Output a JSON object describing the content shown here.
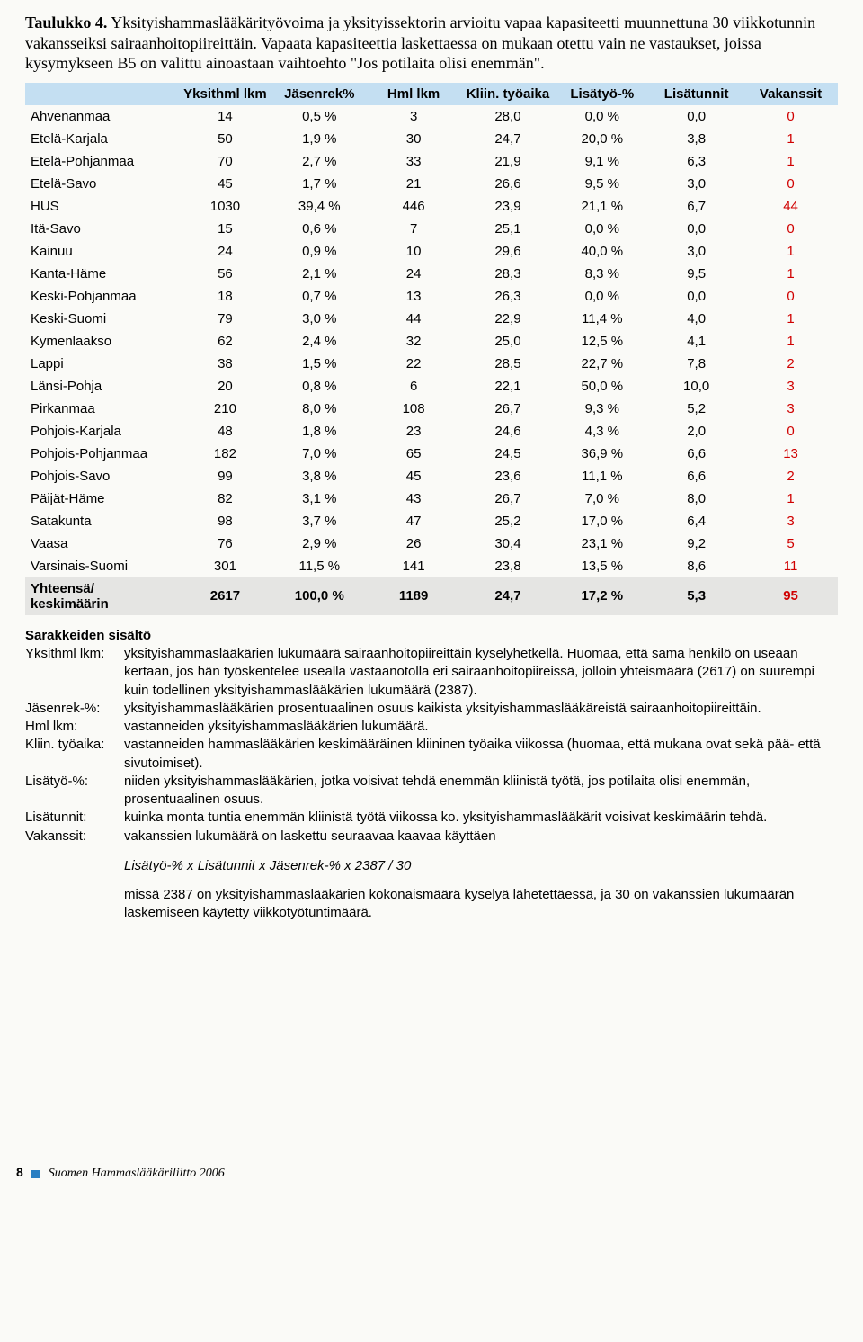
{
  "title_bold": "Taulukko 4.",
  "title_rest": " Yksityishammaslääkärityövoima ja yksityissektorin arvioitu vapaa kapasiteetti muunnettuna 30 viikkotunnin vakansseiksi sairaanhoitopiireittäin. Vapaata kapasiteettia laskettaessa on mukaan otettu vain ne vastaukset, joissa kysymykseen B5 on valittu ainoastaan vaihtoehto \"Jos potilaita olisi enemmän\".",
  "headers": [
    "",
    "Yksithml lkm",
    "Jäsenrek%",
    "Hml lkm",
    "Kliin. työaika",
    "Lisätyö-%",
    "Lisätunnit",
    "Vakanssit"
  ],
  "rows": [
    {
      "r": "Ahvenanmaa",
      "c": [
        "14",
        "0,5 %",
        "3",
        "28,0",
        "0,0 %",
        "0,0",
        "0"
      ]
    },
    {
      "r": "Etelä-Karjala",
      "c": [
        "50",
        "1,9 %",
        "30",
        "24,7",
        "20,0 %",
        "3,8",
        "1"
      ]
    },
    {
      "r": "Etelä-Pohjanmaa",
      "c": [
        "70",
        "2,7 %",
        "33",
        "21,9",
        "9,1 %",
        "6,3",
        "1"
      ]
    },
    {
      "r": "Etelä-Savo",
      "c": [
        "45",
        "1,7 %",
        "21",
        "26,6",
        "9,5 %",
        "3,0",
        "0"
      ]
    },
    {
      "r": "HUS",
      "c": [
        "1030",
        "39,4 %",
        "446",
        "23,9",
        "21,1 %",
        "6,7",
        "44"
      ]
    },
    {
      "r": "Itä-Savo",
      "c": [
        "15",
        "0,6 %",
        "7",
        "25,1",
        "0,0 %",
        "0,0",
        "0"
      ]
    },
    {
      "r": "Kainuu",
      "c": [
        "24",
        "0,9 %",
        "10",
        "29,6",
        "40,0 %",
        "3,0",
        "1"
      ]
    },
    {
      "r": "Kanta-Häme",
      "c": [
        "56",
        "2,1 %",
        "24",
        "28,3",
        "8,3 %",
        "9,5",
        "1"
      ]
    },
    {
      "r": "Keski-Pohjanmaa",
      "c": [
        "18",
        "0,7 %",
        "13",
        "26,3",
        "0,0 %",
        "0,0",
        "0"
      ]
    },
    {
      "r": "Keski-Suomi",
      "c": [
        "79",
        "3,0 %",
        "44",
        "22,9",
        "11,4 %",
        "4,0",
        "1"
      ]
    },
    {
      "r": "Kymenlaakso",
      "c": [
        "62",
        "2,4 %",
        "32",
        "25,0",
        "12,5 %",
        "4,1",
        "1"
      ]
    },
    {
      "r": "Lappi",
      "c": [
        "38",
        "1,5 %",
        "22",
        "28,5",
        "22,7 %",
        "7,8",
        "2"
      ]
    },
    {
      "r": "Länsi-Pohja",
      "c": [
        "20",
        "0,8 %",
        "6",
        "22,1",
        "50,0 %",
        "10,0",
        "3"
      ]
    },
    {
      "r": "Pirkanmaa",
      "c": [
        "210",
        "8,0 %",
        "108",
        "26,7",
        "9,3 %",
        "5,2",
        "3"
      ]
    },
    {
      "r": "Pohjois-Karjala",
      "c": [
        "48",
        "1,8 %",
        "23",
        "24,6",
        "4,3 %",
        "2,0",
        "0"
      ]
    },
    {
      "r": "Pohjois-Pohjanmaa",
      "c": [
        "182",
        "7,0 %",
        "65",
        "24,5",
        "36,9 %",
        "6,6",
        "13"
      ]
    },
    {
      "r": "Pohjois-Savo",
      "c": [
        "99",
        "3,8 %",
        "45",
        "23,6",
        "11,1 %",
        "6,6",
        "2"
      ]
    },
    {
      "r": "Päijät-Häme",
      "c": [
        "82",
        "3,1 %",
        "43",
        "26,7",
        "7,0 %",
        "8,0",
        "1"
      ]
    },
    {
      "r": "Satakunta",
      "c": [
        "98",
        "3,7 %",
        "47",
        "25,2",
        "17,0 %",
        "6,4",
        "3"
      ]
    },
    {
      "r": "Vaasa",
      "c": [
        "76",
        "2,9 %",
        "26",
        "30,4",
        "23,1 %",
        "9,2",
        "5"
      ]
    },
    {
      "r": "Varsinais-Suomi",
      "c": [
        "301",
        "11,5 %",
        "141",
        "23,8",
        "13,5 %",
        "8,6",
        "11"
      ]
    }
  ],
  "total_label1": "Yhteensä/",
  "total_label2": "keskimäärin",
  "total_cells": [
    "2617",
    "100,0 %",
    "1189",
    "24,7",
    "17,2 %",
    "5,3",
    "95"
  ],
  "defs_title": "Sarakkeiden sisältö",
  "defs": [
    {
      "t": "Yksithml lkm:",
      "d": "yksityishammaslääkärien lukumäärä sairaanhoitopiireittäin kyselyhetkellä. Huomaa, että sama henkilö on useaan kertaan, jos hän työskentelee usealla vastaanotolla eri sairaanhoitopiireissä, jolloin yhteismäärä (2617) on suurempi kuin todellinen yksityishammaslääkärien lukumäärä (2387)."
    },
    {
      "t": "Jäsenrek-%:",
      "d": "yksityishammaslääkärien prosentuaalinen osuus kaikista yksityishammaslääkäreistä sairaanhoitopiireittäin."
    },
    {
      "t": "Hml lkm:",
      "d": "vastanneiden yksityishammaslääkärien lukumäärä."
    },
    {
      "t": "Kliin. työaika:",
      "d": "vastanneiden hammaslääkärien keskimääräinen kliininen työaika viikossa (huomaa, että mukana ovat sekä pää- että sivutoimiset)."
    },
    {
      "t": "Lisätyö-%:",
      "d": "niiden yksityishammaslääkärien, jotka voisivat tehdä enemmän kliinistä työtä, jos potilaita olisi enemmän, prosentuaalinen osuus."
    },
    {
      "t": "Lisätunnit:",
      "d": "kuinka monta tuntia enemmän kliinistä työtä viikossa ko. yksityishammaslääkärit voisivat keskimäärin tehdä."
    },
    {
      "t": "Vakanssit:",
      "d": "vakanssien lukumäärä on laskettu seuraavaa kaavaa käyttäen"
    }
  ],
  "formula": "Lisätyö-%  x  Lisätunnit  x  Jäsenrek-%  x  2387 / 30",
  "after_formula": "missä 2387 on yksityishammaslääkärien kokonaismäärä kyselyä lähetettäessä, ja 30 on vakanssien lukumäärän laskemiseen käytetty viikkotyötuntimäärä.",
  "footer_page": "8",
  "footer_text": "Suomen Hammaslääkäriliitto 2006"
}
